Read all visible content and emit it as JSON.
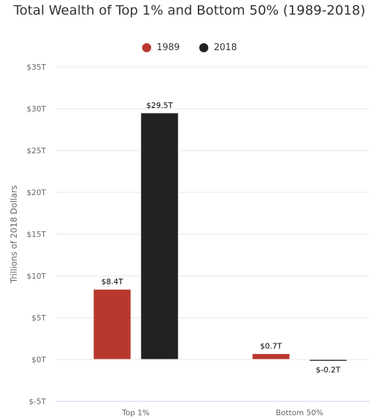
{
  "chart_data": {
    "type": "bar",
    "title": "Total Wealth of Top 1% and Bottom 50% (1989-2018)",
    "ylabel": "Trillions of 2018 Dollars",
    "xlabel": "",
    "categories": [
      "Top 1%",
      "Bottom 50%"
    ],
    "series": [
      {
        "name": "1989",
        "values": [
          8.4,
          0.7
        ],
        "labels": [
          "$8.4T",
          "$0.7T"
        ],
        "color": "#b83830"
      },
      {
        "name": "2018",
        "values": [
          29.5,
          -0.2
        ],
        "labels": [
          "$29.5T",
          "$-0.2T"
        ],
        "color": "#222222"
      }
    ],
    "ylim": [
      -5,
      35
    ],
    "yticks": [
      35,
      30,
      25,
      20,
      15,
      10,
      5,
      0,
      -5
    ],
    "ytick_labels": [
      "$35T",
      "$30T",
      "$25T",
      "$20T",
      "$15T",
      "$10T",
      "$5T",
      "$0T",
      "$-5T"
    ],
    "grid": true,
    "legend_position": "top-center"
  }
}
